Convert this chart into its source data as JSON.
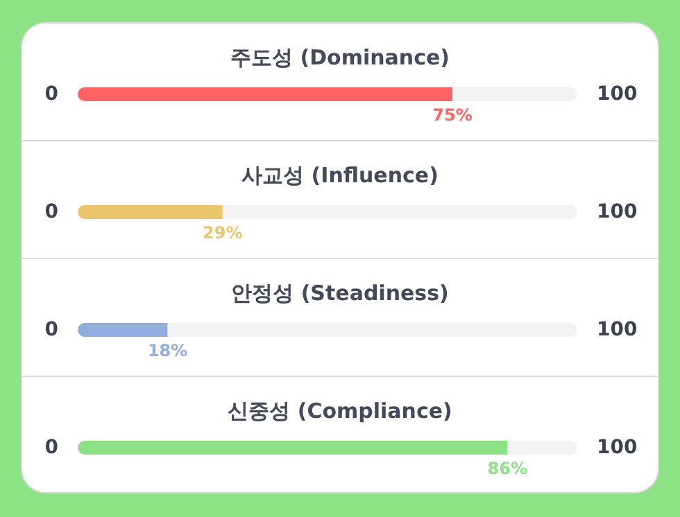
{
  "chart_data": [
    {
      "type": "bar",
      "orientation": "horizontal",
      "stacked": true,
      "title": "주도성 (Dominance)",
      "categories": [
        null
      ],
      "annotations": [
        "0",
        "100"
      ],
      "series": [
        {
          "color": "#ff6363",
          "values": [
            75
          ],
          "value_labels": [
            "75%"
          ]
        },
        {
          "color": "#f3f3f3",
          "values": [
            25
          ]
        }
      ]
    },
    {
      "type": "bar",
      "orientation": "horizontal",
      "stacked": true,
      "title": "사교성 (Influence)",
      "categories": [
        null
      ],
      "annotations": [
        "0",
        "100"
      ],
      "series": [
        {
          "color": "#ebc56e",
          "values": [
            29
          ],
          "value_labels": [
            "29%"
          ]
        },
        {
          "color": "#f3f3f3",
          "values": [
            71
          ]
        }
      ]
    },
    {
      "type": "bar",
      "orientation": "horizontal",
      "stacked": true,
      "title": "안정성 (Steadiness)",
      "categories": [
        null
      ],
      "annotations": [
        "0",
        "100"
      ],
      "series": [
        {
          "color": "#92acdb",
          "values": [
            18
          ],
          "value_labels": [
            "18%"
          ]
        },
        {
          "color": "#f3f3f3",
          "values": [
            82
          ]
        }
      ]
    },
    {
      "type": "bar",
      "orientation": "horizontal",
      "stacked": true,
      "title": "신중성 (Compliance)",
      "categories": [
        null
      ],
      "annotations": [
        "0",
        "100"
      ],
      "series": [
        {
          "color": "#8de285",
          "values": [
            86
          ],
          "value_labels": [
            "86%"
          ]
        },
        {
          "color": "#f3f3f3",
          "values": [
            14
          ]
        }
      ]
    }
  ]
}
